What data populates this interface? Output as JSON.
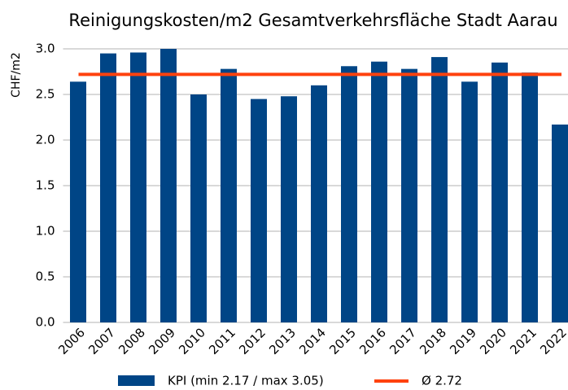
{
  "chart_data": {
    "type": "bar",
    "title": "Reinigungskosten/m2 Gesamtverkehrsfläche Stadt Aarau",
    "y_label": "CHF/m2",
    "categories": [
      "2006",
      "2007",
      "2008",
      "2009",
      "2010",
      "2011",
      "2012",
      "2013",
      "2014",
      "2015",
      "2016",
      "2017",
      "2018",
      "2019",
      "2020",
      "2021",
      "2022"
    ],
    "series": [
      {
        "name": "KPI (min 2.17 / max 3.05)",
        "color": "#004586",
        "values": [
          2.64,
          2.95,
          2.96,
          3.05,
          2.5,
          2.78,
          2.45,
          2.48,
          2.6,
          2.81,
          2.86,
          2.78,
          2.91,
          2.64,
          2.85,
          2.74,
          2.17
        ]
      }
    ],
    "reference_line": {
      "name": "Ø 2.72",
      "value": 2.72,
      "color": "#ff420e"
    },
    "ylim": [
      0,
      3
    ],
    "yticks": [
      {
        "value": 0,
        "label": "0.0"
      },
      0.5,
      {
        "value": 1,
        "label": "1.0"
      },
      1.5,
      {
        "value": 2,
        "label": "2.0"
      },
      2.5,
      {
        "value": 3,
        "label": "3.0"
      }
    ],
    "grid": true
  }
}
